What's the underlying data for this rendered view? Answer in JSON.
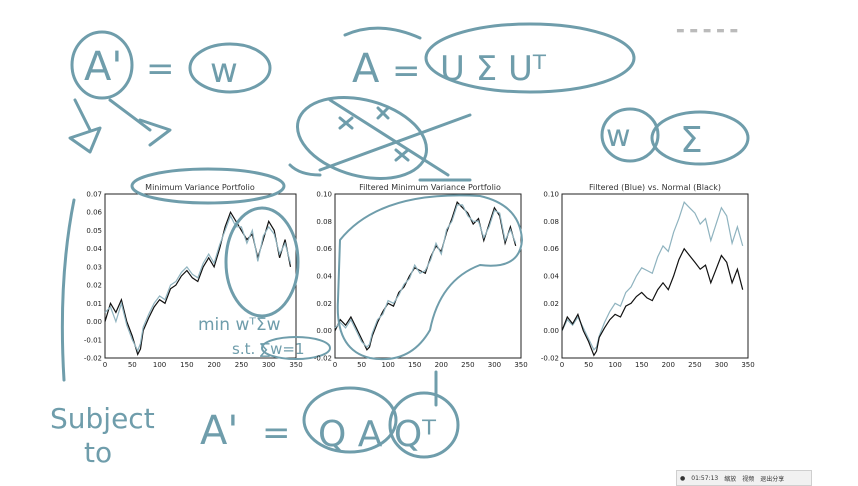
{
  "board": {
    "ink_color": "#6f9dab",
    "notes": {
      "a_prime": "A'",
      "equals": "=",
      "w": "w",
      "a_eq": "A",
      "usv": "U Σ Uᵀ",
      "w_sigma_w": "w",
      "sigma": "Σ",
      "min_line1": "min wᵀΣw",
      "min_line2": "s.t. ∑w=1",
      "subject": "Subject",
      "to": "to",
      "a_prime2": "A'",
      "qaq": "Q A Qᵀ"
    }
  },
  "chart_data": [
    {
      "type": "line",
      "title": "Minimum Variance Portfolio",
      "xlim": [
        0,
        350
      ],
      "ylim": [
        -0.02,
        0.07
      ],
      "xticks": [
        "0",
        "50",
        "100",
        "150",
        "200",
        "250",
        "300",
        "350"
      ],
      "yticks": [
        "-0.02",
        "-0.01",
        "0.00",
        "0.01",
        "0.02",
        "0.03",
        "0.04",
        "0.05",
        "0.06",
        "0.07"
      ],
      "series": [
        {
          "color": "#111111",
          "x": [
            0,
            10,
            20,
            30,
            40,
            50,
            60,
            65,
            70,
            80,
            90,
            100,
            110,
            120,
            130,
            140,
            150,
            160,
            170,
            180,
            190,
            200,
            210,
            220,
            230,
            240,
            250,
            260,
            270,
            280,
            290,
            300,
            310,
            320,
            330,
            340
          ],
          "y": [
            0.0,
            0.01,
            0.005,
            0.012,
            0.0,
            -0.008,
            -0.018,
            -0.015,
            -0.005,
            0.002,
            0.008,
            0.012,
            0.01,
            0.018,
            0.02,
            0.025,
            0.028,
            0.024,
            0.022,
            0.03,
            0.035,
            0.03,
            0.04,
            0.052,
            0.06,
            0.055,
            0.05,
            0.045,
            0.048,
            0.035,
            0.045,
            0.055,
            0.05,
            0.035,
            0.045,
            0.03
          ]
        },
        {
          "color": "#8fb3bf",
          "x": [
            0,
            10,
            20,
            30,
            40,
            50,
            60,
            65,
            70,
            80,
            90,
            100,
            110,
            120,
            130,
            140,
            150,
            160,
            170,
            180,
            190,
            200,
            210,
            220,
            230,
            240,
            250,
            260,
            270,
            280,
            290,
            300,
            310,
            320,
            330,
            340
          ],
          "y": [
            0.005,
            0.008,
            0.0,
            0.01,
            -0.002,
            -0.01,
            -0.016,
            -0.012,
            -0.003,
            0.004,
            0.01,
            0.014,
            0.012,
            0.02,
            0.022,
            0.027,
            0.03,
            0.026,
            0.024,
            0.032,
            0.037,
            0.032,
            0.042,
            0.05,
            0.058,
            0.052,
            0.052,
            0.043,
            0.05,
            0.033,
            0.047,
            0.052,
            0.048,
            0.037,
            0.043,
            0.032
          ]
        }
      ]
    },
    {
      "type": "line",
      "title": "Filtered Minimum Variance Portfolio",
      "xlim": [
        0,
        350
      ],
      "ylim": [
        -0.02,
        0.1
      ],
      "xticks": [
        "0",
        "50",
        "100",
        "150",
        "200",
        "250",
        "300",
        "350"
      ],
      "yticks": [
        "-0.02",
        "0.00",
        "0.02",
        "0.04",
        "0.06",
        "0.08",
        "0.10"
      ],
      "series": [
        {
          "color": "#111111",
          "x": [
            0,
            10,
            20,
            30,
            40,
            50,
            60,
            65,
            70,
            80,
            90,
            100,
            110,
            120,
            130,
            140,
            150,
            160,
            170,
            180,
            190,
            200,
            210,
            220,
            230,
            240,
            250,
            260,
            270,
            280,
            290,
            300,
            310,
            320,
            330,
            340
          ],
          "y": [
            0.0,
            0.008,
            0.004,
            0.01,
            0.002,
            -0.006,
            -0.014,
            -0.012,
            -0.004,
            0.006,
            0.014,
            0.02,
            0.018,
            0.028,
            0.032,
            0.04,
            0.046,
            0.044,
            0.042,
            0.054,
            0.062,
            0.058,
            0.072,
            0.082,
            0.094,
            0.09,
            0.086,
            0.078,
            0.082,
            0.066,
            0.078,
            0.09,
            0.084,
            0.064,
            0.076,
            0.062
          ]
        },
        {
          "color": "#8fb3bf",
          "x": [
            0,
            10,
            20,
            30,
            40,
            50,
            60,
            65,
            70,
            80,
            90,
            100,
            110,
            120,
            130,
            140,
            150,
            160,
            170,
            180,
            190,
            200,
            210,
            220,
            230,
            240,
            250,
            260,
            270,
            280,
            290,
            300,
            310,
            320,
            330,
            340
          ],
          "y": [
            0.002,
            0.006,
            0.002,
            0.008,
            0.0,
            -0.008,
            -0.012,
            -0.01,
            -0.002,
            0.008,
            0.012,
            0.022,
            0.02,
            0.026,
            0.034,
            0.038,
            0.048,
            0.042,
            0.044,
            0.052,
            0.064,
            0.056,
            0.074,
            0.08,
            0.092,
            0.092,
            0.084,
            0.08,
            0.08,
            0.068,
            0.076,
            0.088,
            0.086,
            0.066,
            0.074,
            0.064
          ]
        }
      ]
    },
    {
      "type": "line",
      "title": "Filtered (Blue) vs. Normal (Black)",
      "xlim": [
        0,
        350
      ],
      "ylim": [
        -0.02,
        0.1
      ],
      "xticks": [
        "0",
        "50",
        "100",
        "150",
        "200",
        "250",
        "300",
        "350"
      ],
      "yticks": [
        "-0.02",
        "0.00",
        "0.02",
        "0.04",
        "0.06",
        "0.08",
        "0.10"
      ],
      "series": [
        {
          "color": "#8fb3bf",
          "x": [
            0,
            10,
            20,
            30,
            40,
            50,
            60,
            65,
            70,
            80,
            90,
            100,
            110,
            120,
            130,
            140,
            150,
            160,
            170,
            180,
            190,
            200,
            210,
            220,
            230,
            240,
            250,
            260,
            270,
            280,
            290,
            300,
            310,
            320,
            330,
            340
          ],
          "y": [
            0.0,
            0.008,
            0.004,
            0.01,
            0.002,
            -0.006,
            -0.014,
            -0.012,
            -0.004,
            0.006,
            0.014,
            0.02,
            0.018,
            0.028,
            0.032,
            0.04,
            0.046,
            0.044,
            0.042,
            0.054,
            0.062,
            0.058,
            0.072,
            0.082,
            0.094,
            0.09,
            0.086,
            0.078,
            0.082,
            0.066,
            0.078,
            0.09,
            0.084,
            0.064,
            0.076,
            0.062
          ]
        },
        {
          "color": "#111111",
          "x": [
            0,
            10,
            20,
            30,
            40,
            50,
            60,
            65,
            70,
            80,
            90,
            100,
            110,
            120,
            130,
            140,
            150,
            160,
            170,
            180,
            190,
            200,
            210,
            220,
            230,
            240,
            250,
            260,
            270,
            280,
            290,
            300,
            310,
            320,
            330,
            340
          ],
          "y": [
            0.0,
            0.01,
            0.005,
            0.012,
            0.0,
            -0.008,
            -0.018,
            -0.015,
            -0.005,
            0.002,
            0.008,
            0.012,
            0.01,
            0.018,
            0.02,
            0.025,
            0.028,
            0.024,
            0.022,
            0.03,
            0.035,
            0.03,
            0.04,
            0.052,
            0.06,
            0.055,
            0.05,
            0.045,
            0.048,
            0.035,
            0.045,
            0.055,
            0.05,
            0.035,
            0.045,
            0.03
          ]
        }
      ]
    }
  ],
  "taskbar": {
    "time": "01:57:13",
    "item1": "缩放",
    "item2": "视频",
    "item3": "退出分享"
  },
  "topright": "▬ ▬ ▬ ▬ ▬"
}
